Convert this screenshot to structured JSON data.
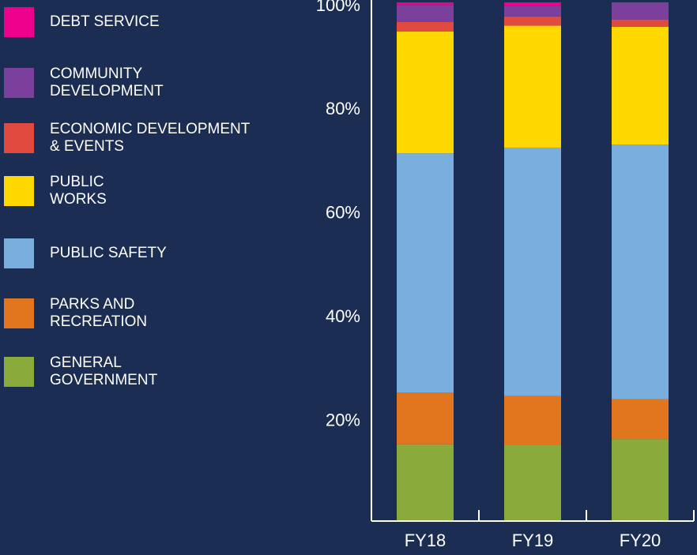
{
  "chart_data": {
    "type": "stacked_bar",
    "categories": [
      "FY18",
      "FY19",
      "FY20"
    ],
    "series": [
      {
        "name": "GENERAL\nGOVERNMENT",
        "color": "#8aab3c",
        "values": [
          14.8,
          14.7,
          15.8
        ]
      },
      {
        "name": "PARKS AND\nRECREATION",
        "color": "#e2761f",
        "values": [
          10.0,
          9.4,
          7.7
        ]
      },
      {
        "name": "PUBLIC SAFETY",
        "color": "#7aaedd",
        "values": [
          46.1,
          47.9,
          49.1
        ]
      },
      {
        "name": "PUBLIC\nWORKS",
        "color": "#ffd800",
        "values": [
          23.5,
          23.5,
          22.7
        ]
      },
      {
        "name": "ECONOMIC DEVELOPMENT\n& EVENTS",
        "color": "#e04a3f",
        "values": [
          1.8,
          1.8,
          1.4
        ]
      },
      {
        "name": "COMMUNITY\nDEVELOPMENT",
        "color": "#7b3f9c",
        "values": [
          3.3,
          2.0,
          3.3
        ]
      },
      {
        "name": "DEBT SERVICE",
        "color": "#ec008c",
        "values": [
          0.5,
          0.7,
          0
        ]
      }
    ],
    "ylim": [
      0,
      100
    ],
    "yticks": [
      {
        "value": 20,
        "label": "20%"
      },
      {
        "value": 40,
        "label": "40%"
      },
      {
        "value": 60,
        "label": "60%"
      },
      {
        "value": 80,
        "label": "80%"
      },
      {
        "value": 100,
        "label": "100%"
      }
    ]
  }
}
